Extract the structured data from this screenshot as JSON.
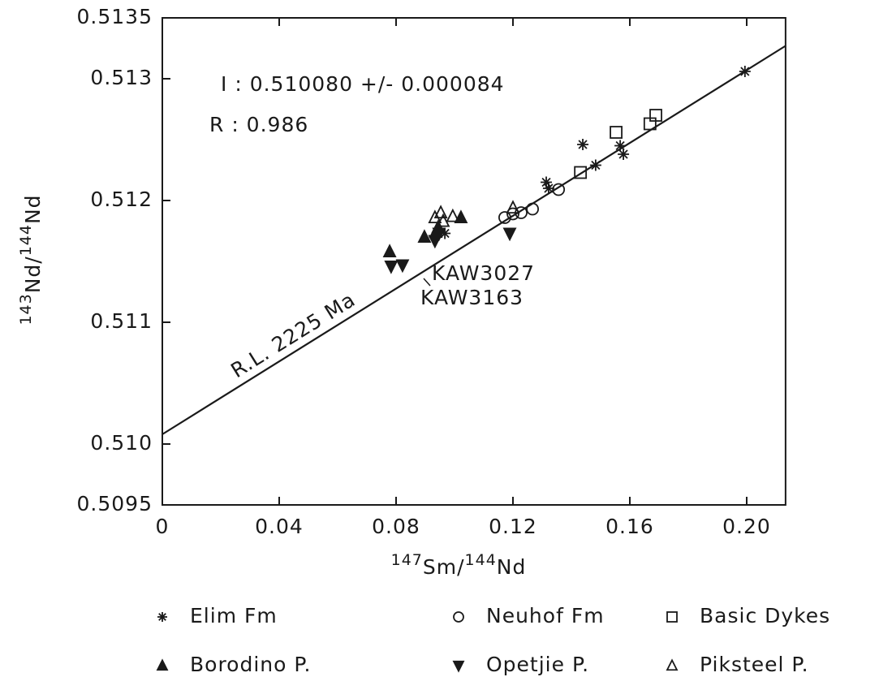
{
  "chart_data": {
    "type": "scatter",
    "xlabel": [
      {
        "text": "147",
        "sup": true
      },
      {
        "text": "Sm/",
        "sup": false
      },
      {
        "text": "144",
        "sup": true
      },
      {
        "text": "Nd",
        "sup": false
      }
    ],
    "ylabel": [
      {
        "text": "143",
        "sup": true
      },
      {
        "text": "Nd/",
        "sup": false
      },
      {
        "text": "144",
        "sup": true
      },
      {
        "text": "Nd",
        "sup": false
      }
    ],
    "xlim": [
      0,
      0.2133
    ],
    "ylim": [
      0.5095,
      0.5135
    ],
    "xticks": [
      0,
      0.04,
      0.08,
      0.12,
      0.16,
      {
        "value": 0.2,
        "label": "0.20"
      }
    ],
    "yticks": [
      0.5095,
      {
        "value": 0.51,
        "label": "0.510"
      },
      0.511,
      0.512,
      0.513,
      0.5135
    ],
    "color": "#1a1a1a",
    "fit_line": {
      "label": "R.L. 2225 Ma",
      "x": [
        0,
        0.2133
      ],
      "y": [
        0.51008,
        0.51327
      ]
    },
    "annotations": [
      "I : 0.510080 +/- 0.000084",
      "R : 0.986",
      "KAW3027",
      "KAW3163"
    ],
    "series": [
      {
        "name": "Elim Fm",
        "marker": "asterisk",
        "x": [
          0.1994,
          0.1439,
          0.1567,
          0.1578,
          0.1483,
          0.1314,
          0.1322,
          0.0967
        ],
        "y": [
          0.51306,
          0.51246,
          0.51245,
          0.51238,
          0.51229,
          0.51215,
          0.5121,
          0.51173
        ]
      },
      {
        "name": "Neuhof Fm",
        "marker": "circle",
        "x": [
          0.1172,
          0.12,
          0.1228,
          0.1267,
          0.1356
        ],
        "y": [
          0.51186,
          0.51189,
          0.5119,
          0.51193,
          0.51209
        ]
      },
      {
        "name": "Basic Dykes",
        "marker": "square",
        "x": [
          0.1431,
          0.1553,
          0.1669,
          0.1689
        ],
        "y": [
          0.51223,
          0.51256,
          0.51263,
          0.5127
        ]
      },
      {
        "name": "Borodino P.",
        "marker": "triangle-up",
        "x": [
          0.0778,
          0.0897,
          0.0936,
          0.1022,
          0.0944
        ],
        "y": [
          0.51158,
          0.5117,
          0.51174,
          0.51186,
          0.51178
        ]
      },
      {
        "name": "Opetjie P.",
        "marker": "triangle-down",
        "x": [
          0.0783,
          0.0822,
          0.0933,
          0.0947,
          0.1189
        ],
        "y": [
          0.51146,
          0.51147,
          0.51167,
          0.51173,
          0.51173
        ]
      },
      {
        "name": "Piksteel P.",
        "marker": "triangle-open",
        "x": [
          0.0953,
          0.0933,
          0.0994,
          0.12,
          0.0961
        ],
        "y": [
          0.5119,
          0.51186,
          0.51187,
          0.51194,
          0.51183
        ]
      }
    ]
  }
}
